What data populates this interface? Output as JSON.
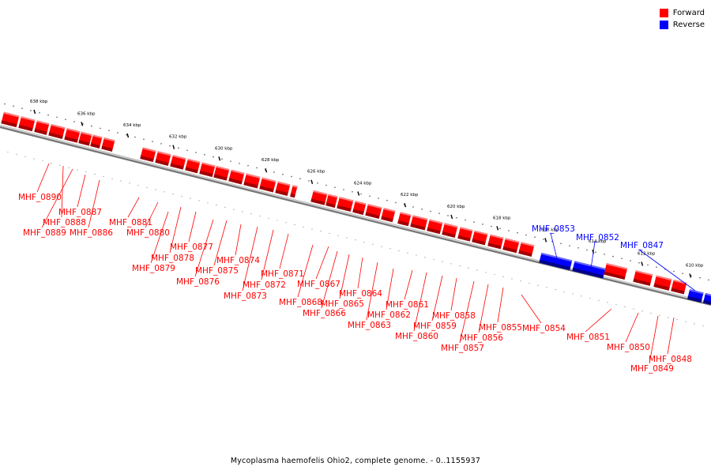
{
  "legend": {
    "forward_label": "Forward",
    "reverse_label": "Reverse",
    "forward_color": "#ff0000",
    "reverse_color": "#0000ff"
  },
  "footer": {
    "caption": "Mycoplasma haemofelis Ohio2, complete genome. - 0..1155937"
  },
  "ticks": [
    "638 kbp",
    "636 kbp",
    "634 kbp",
    "632 kbp",
    "630 kbp",
    "628 kbp",
    "626 kbp",
    "624 kbp",
    "622 kbp",
    "620 kbp",
    "618 kbp",
    "616 kbp",
    "614 kbp",
    "612 kbp",
    "610 kbp"
  ],
  "genes": [
    {
      "name": "MHF_0890",
      "strand": "forward"
    },
    {
      "name": "MHF_0889",
      "strand": "forward"
    },
    {
      "name": "MHF_0888",
      "strand": "forward"
    },
    {
      "name": "MHF_0887",
      "strand": "forward"
    },
    {
      "name": "MHF_0886",
      "strand": "forward"
    },
    {
      "name": "MHF_0881",
      "strand": "forward"
    },
    {
      "name": "MHF_0880",
      "strand": "forward"
    },
    {
      "name": "MHF_0879",
      "strand": "forward"
    },
    {
      "name": "MHF_0878",
      "strand": "forward"
    },
    {
      "name": "MHF_0877",
      "strand": "forward"
    },
    {
      "name": "MHF_0876",
      "strand": "forward"
    },
    {
      "name": "MHF_0875",
      "strand": "forward"
    },
    {
      "name": "MHF_0874",
      "strand": "forward"
    },
    {
      "name": "MHF_0873",
      "strand": "forward"
    },
    {
      "name": "MHF_0872",
      "strand": "forward"
    },
    {
      "name": "MHF_0871",
      "strand": "forward"
    },
    {
      "name": "MHF_0868",
      "strand": "forward"
    },
    {
      "name": "MHF_0867",
      "strand": "forward"
    },
    {
      "name": "MHF_0866",
      "strand": "forward"
    },
    {
      "name": "MHF_0865",
      "strand": "forward"
    },
    {
      "name": "MHF_0864",
      "strand": "forward"
    },
    {
      "name": "MHF_0863",
      "strand": "forward"
    },
    {
      "name": "MHF_0862",
      "strand": "forward"
    },
    {
      "name": "MHF_0861",
      "strand": "forward"
    },
    {
      "name": "MHF_0860",
      "strand": "forward"
    },
    {
      "name": "MHF_0859",
      "strand": "forward"
    },
    {
      "name": "MHF_0858",
      "strand": "forward"
    },
    {
      "name": "MHF_0857",
      "strand": "forward"
    },
    {
      "name": "MHF_0856",
      "strand": "forward"
    },
    {
      "name": "MHF_0855",
      "strand": "forward"
    },
    {
      "name": "MHF_0854",
      "strand": "forward"
    },
    {
      "name": "MHF_0853",
      "strand": "reverse"
    },
    {
      "name": "MHF_0852",
      "strand": "reverse"
    },
    {
      "name": "MHF_0851",
      "strand": "forward"
    },
    {
      "name": "MHF_0850",
      "strand": "forward"
    },
    {
      "name": "MHF_0849",
      "strand": "forward"
    },
    {
      "name": "MHF_0848",
      "strand": "forward"
    },
    {
      "name": "MHF_0847",
      "strand": "reverse"
    }
  ]
}
